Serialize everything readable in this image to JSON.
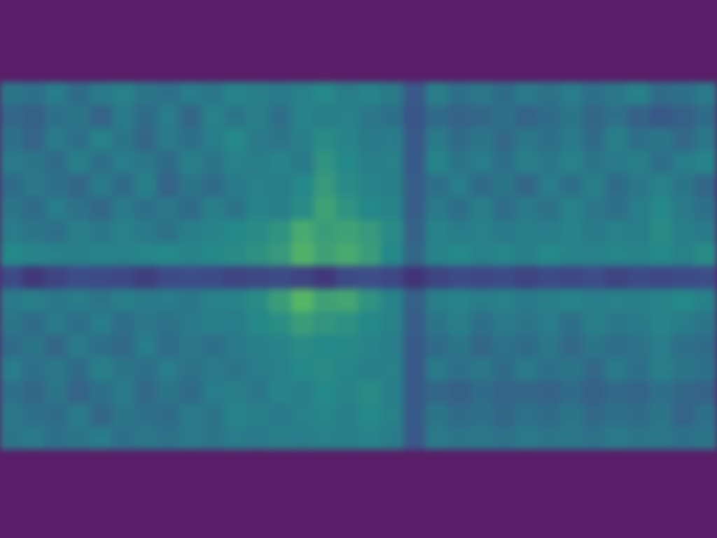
{
  "chart_data": {
    "type": "heatmap",
    "color": "viridis",
    "color_range": [
      0,
      1
    ],
    "tick_labels": false,
    "cells": [
      [
        0.42,
        0.4,
        0.45,
        0.38,
        0.44,
        0.47,
        0.42,
        0.4,
        0.45,
        0.43,
        0.48,
        0.46,
        0.44,
        0.47,
        0.5,
        0.45,
        0.48,
        0.44,
        0.3,
        0.46,
        0.4,
        0.43,
        0.38,
        0.44,
        0.41,
        0.45,
        0.4,
        0.43,
        0.47,
        0.38,
        0.4,
        0.44
      ],
      [
        0.36,
        0.33,
        0.4,
        0.42,
        0.35,
        0.44,
        0.38,
        0.45,
        0.36,
        0.47,
        0.42,
        0.46,
        0.4,
        0.48,
        0.45,
        0.47,
        0.43,
        0.4,
        0.28,
        0.38,
        0.34,
        0.36,
        0.4,
        0.35,
        0.38,
        0.42,
        0.36,
        0.4,
        0.34,
        0.3,
        0.33,
        0.38
      ],
      [
        0.4,
        0.35,
        0.44,
        0.4,
        0.47,
        0.42,
        0.36,
        0.44,
        0.4,
        0.45,
        0.5,
        0.44,
        0.42,
        0.46,
        0.52,
        0.48,
        0.44,
        0.45,
        0.3,
        0.44,
        0.38,
        0.42,
        0.37,
        0.43,
        0.4,
        0.44,
        0.38,
        0.46,
        0.4,
        0.42,
        0.37,
        0.43
      ],
      [
        0.44,
        0.42,
        0.38,
        0.46,
        0.4,
        0.45,
        0.43,
        0.38,
        0.46,
        0.42,
        0.47,
        0.45,
        0.48,
        0.44,
        0.55,
        0.5,
        0.46,
        0.47,
        0.31,
        0.48,
        0.42,
        0.45,
        0.4,
        0.46,
        0.43,
        0.47,
        0.42,
        0.44,
        0.46,
        0.4,
        0.45,
        0.48
      ],
      [
        0.38,
        0.43,
        0.4,
        0.36,
        0.44,
        0.38,
        0.46,
        0.35,
        0.42,
        0.38,
        0.44,
        0.47,
        0.45,
        0.5,
        0.58,
        0.52,
        0.48,
        0.46,
        0.32,
        0.4,
        0.45,
        0.38,
        0.42,
        0.36,
        0.45,
        0.4,
        0.46,
        0.38,
        0.43,
        0.47,
        0.42,
        0.36
      ],
      [
        0.42,
        0.38,
        0.45,
        0.41,
        0.37,
        0.44,
        0.4,
        0.43,
        0.38,
        0.46,
        0.42,
        0.48,
        0.46,
        0.52,
        0.62,
        0.55,
        0.5,
        0.48,
        0.32,
        0.44,
        0.4,
        0.46,
        0.39,
        0.44,
        0.41,
        0.47,
        0.43,
        0.4,
        0.45,
        0.5,
        0.44,
        0.4
      ],
      [
        0.45,
        0.42,
        0.4,
        0.46,
        0.43,
        0.47,
        0.44,
        0.41,
        0.46,
        0.48,
        0.5,
        0.52,
        0.55,
        0.66,
        0.6,
        0.62,
        0.58,
        0.52,
        0.34,
        0.48,
        0.45,
        0.47,
        0.44,
        0.46,
        0.45,
        0.48,
        0.44,
        0.47,
        0.45,
        0.52,
        0.46,
        0.44
      ],
      [
        0.5,
        0.48,
        0.47,
        0.46,
        0.48,
        0.47,
        0.49,
        0.5,
        0.48,
        0.5,
        0.52,
        0.54,
        0.58,
        0.7,
        0.62,
        0.66,
        0.6,
        0.5,
        0.36,
        0.48,
        0.5,
        0.47,
        0.49,
        0.46,
        0.5,
        0.48,
        0.47,
        0.49,
        0.48,
        0.5,
        0.47,
        0.52
      ],
      [
        0.24,
        0.18,
        0.22,
        0.25,
        0.24,
        0.23,
        0.2,
        0.24,
        0.25,
        0.24,
        0.22,
        0.23,
        0.24,
        0.22,
        0.18,
        0.24,
        0.25,
        0.23,
        0.17,
        0.22,
        0.24,
        0.23,
        0.24,
        0.22,
        0.24,
        0.23,
        0.25,
        0.22,
        0.24,
        0.23,
        0.24,
        0.25
      ],
      [
        0.44,
        0.46,
        0.43,
        0.45,
        0.42,
        0.46,
        0.44,
        0.45,
        0.43,
        0.47,
        0.48,
        0.52,
        0.6,
        0.72,
        0.62,
        0.64,
        0.55,
        0.48,
        0.33,
        0.46,
        0.48,
        0.45,
        0.47,
        0.44,
        0.46,
        0.48,
        0.45,
        0.47,
        0.46,
        0.48,
        0.5,
        0.47
      ],
      [
        0.42,
        0.38,
        0.44,
        0.4,
        0.45,
        0.39,
        0.43,
        0.41,
        0.44,
        0.46,
        0.45,
        0.5,
        0.53,
        0.6,
        0.56,
        0.54,
        0.5,
        0.47,
        0.32,
        0.42,
        0.46,
        0.4,
        0.44,
        0.42,
        0.45,
        0.4,
        0.46,
        0.43,
        0.44,
        0.48,
        0.45,
        0.42
      ],
      [
        0.38,
        0.42,
        0.36,
        0.44,
        0.4,
        0.37,
        0.45,
        0.39,
        0.43,
        0.4,
        0.44,
        0.46,
        0.48,
        0.52,
        0.5,
        0.51,
        0.48,
        0.45,
        0.31,
        0.38,
        0.42,
        0.36,
        0.41,
        0.38,
        0.43,
        0.37,
        0.42,
        0.39,
        0.41,
        0.45,
        0.4,
        0.38
      ],
      [
        0.45,
        0.4,
        0.43,
        0.38,
        0.46,
        0.42,
        0.4,
        0.45,
        0.41,
        0.44,
        0.42,
        0.45,
        0.47,
        0.5,
        0.52,
        0.49,
        0.46,
        0.47,
        0.3,
        0.44,
        0.4,
        0.43,
        0.38,
        0.44,
        0.4,
        0.42,
        0.37,
        0.44,
        0.4,
        0.46,
        0.42,
        0.4
      ],
      [
        0.4,
        0.36,
        0.42,
        0.35,
        0.4,
        0.44,
        0.37,
        0.42,
        0.38,
        0.45,
        0.46,
        0.43,
        0.48,
        0.46,
        0.5,
        0.48,
        0.52,
        0.46,
        0.3,
        0.36,
        0.33,
        0.38,
        0.35,
        0.36,
        0.34,
        0.38,
        0.33,
        0.37,
        0.35,
        0.4,
        0.36,
        0.34
      ],
      [
        0.43,
        0.4,
        0.38,
        0.44,
        0.36,
        0.42,
        0.4,
        0.38,
        0.44,
        0.42,
        0.48,
        0.46,
        0.44,
        0.47,
        0.49,
        0.46,
        0.5,
        0.47,
        0.31,
        0.42,
        0.38,
        0.4,
        0.36,
        0.41,
        0.38,
        0.42,
        0.37,
        0.4,
        0.38,
        0.42,
        0.35,
        0.4
      ],
      [
        0.42,
        0.44,
        0.4,
        0.42,
        0.45,
        0.4,
        0.43,
        0.41,
        0.44,
        0.42,
        0.45,
        0.44,
        0.46,
        0.45,
        0.47,
        0.46,
        0.48,
        0.45,
        0.3,
        0.44,
        0.42,
        0.43,
        0.41,
        0.44,
        0.42,
        0.43,
        0.41,
        0.44,
        0.42,
        0.43,
        0.4,
        0.42
      ]
    ]
  }
}
